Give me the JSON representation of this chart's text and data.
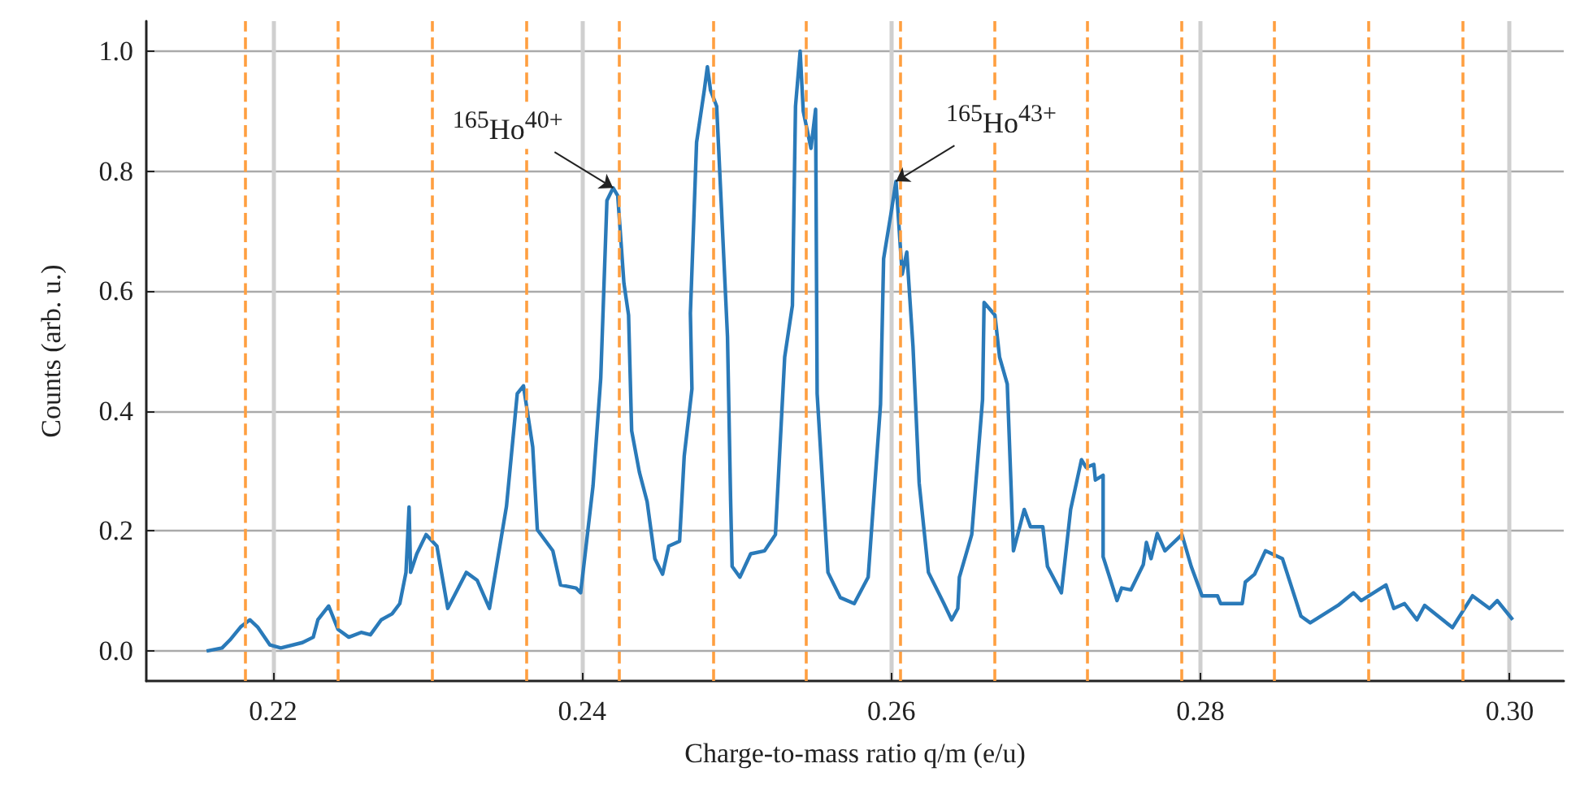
{
  "chart_data": {
    "type": "line",
    "xlabel": "Charge-to-mass ratio q/m (e/u)",
    "ylabel": "Counts (arb. u.)",
    "xlim": [
      0.2118,
      0.3035
    ],
    "ylim": [
      -0.05,
      1.05
    ],
    "xticks": [
      0.22,
      0.24,
      0.26,
      0.28,
      {
        "value": 0.3,
        "label": "0.30"
      }
    ],
    "yticks": [
      {
        "value": 0,
        "label": "0.0"
      },
      {
        "value": 0.2,
        "label": "0.2"
      },
      {
        "value": 0.4,
        "label": "0.4"
      },
      {
        "value": 0.6,
        "label": "0.6"
      },
      {
        "value": 0.8,
        "label": "0.8"
      },
      {
        "value": 1,
        "label": "1.0"
      }
    ],
    "grid": true,
    "marker": "none",
    "line_style": "solid",
    "series": [
      {
        "color": "#2a7ab9",
        "x": [
          0.2157,
          0.2167,
          0.2172,
          0.2179,
          0.2185,
          0.219,
          0.2198,
          0.2205,
          0.2219,
          0.2226,
          0.2229,
          0.2236,
          0.2242,
          0.2249,
          0.2257,
          0.2263,
          0.227,
          0.2277,
          0.2282,
          0.2286,
          0.2288,
          0.2289,
          0.2293,
          0.2299,
          0.2306,
          0.2313,
          0.2325,
          0.2332,
          0.234,
          0.2351,
          0.2358,
          0.2362,
          0.2368,
          0.2371,
          0.2381,
          0.2386,
          0.2396,
          0.2399,
          0.2407,
          0.2412,
          0.2416,
          0.242,
          0.2423,
          0.2427,
          0.243,
          0.2432,
          0.2437,
          0.2442,
          0.2447,
          0.2452,
          0.2456,
          0.2463,
          0.2466,
          0.2471,
          0.247,
          0.2474,
          0.2479,
          0.2481,
          0.2483,
          0.2487,
          0.2494,
          0.2496,
          0.2497,
          0.2502,
          0.2509,
          0.2518,
          0.2525,
          0.2531,
          0.2536,
          0.2538,
          0.2541,
          0.2543,
          0.2548,
          0.2551,
          0.2552,
          0.2559,
          0.2567,
          0.2576,
          0.2585,
          0.2593,
          0.2595,
          0.26,
          0.2603,
          0.2607,
          0.261,
          0.2614,
          0.2618,
          0.2624,
          0.2634,
          0.2639,
          0.2643,
          0.2644,
          0.2652,
          0.2659,
          0.266,
          0.2667,
          0.267,
          0.2675,
          0.2679,
          0.2686,
          0.269,
          0.2698,
          0.2701,
          0.271,
          0.2716,
          0.2723,
          0.2726,
          0.2731,
          0.2732,
          0.2737,
          0.2737,
          0.2746,
          0.2749,
          0.2755,
          0.2763,
          0.2765,
          0.2768,
          0.2772,
          0.2777,
          0.2788,
          0.2794,
          0.2801,
          0.2811,
          0.2813,
          0.2827,
          0.2829,
          0.2835,
          0.2842,
          0.2853,
          0.2865,
          0.2871,
          0.2889,
          0.2899,
          0.2904,
          0.292,
          0.2925,
          0.2932,
          0.294,
          0.2945,
          0.2963,
          0.2976,
          0.2987,
          0.2992,
          0.3002
        ],
        "values": [
          0,
          0.005,
          0.018,
          0.04,
          0.052,
          0.04,
          0.01,
          0.005,
          0.014,
          0.023,
          0.052,
          0.075,
          0.036,
          0.023,
          0.031,
          0.027,
          0.052,
          0.062,
          0.079,
          0.131,
          0.24,
          0.131,
          0.162,
          0.194,
          0.175,
          0.071,
          0.131,
          0.118,
          0.071,
          0.241,
          0.429,
          0.442,
          0.34,
          0.202,
          0.167,
          0.11,
          0.105,
          0.097,
          0.275,
          0.455,
          0.751,
          0.772,
          0.759,
          0.613,
          0.56,
          0.367,
          0.298,
          0.249,
          0.154,
          0.128,
          0.175,
          0.183,
          0.325,
          0.437,
          0.563,
          0.848,
          0.935,
          0.974,
          0.935,
          0.908,
          0.524,
          0.254,
          0.141,
          0.123,
          0.162,
          0.167,
          0.194,
          0.49,
          0.576,
          0.908,
          1.0,
          0.9,
          0.838,
          0.903,
          0.429,
          0.131,
          0.089,
          0.079,
          0.123,
          0.411,
          0.654,
          0.733,
          0.783,
          0.628,
          0.665,
          0.508,
          0.28,
          0.131,
          0.079,
          0.052,
          0.071,
          0.123,
          0.194,
          0.419,
          0.581,
          0.56,
          0.49,
          0.445,
          0.167,
          0.236,
          0.207,
          0.207,
          0.141,
          0.097,
          0.236,
          0.319,
          0.306,
          0.311,
          0.285,
          0.293,
          0.157,
          0.084,
          0.105,
          0.102,
          0.144,
          0.181,
          0.154,
          0.196,
          0.167,
          0.194,
          0.141,
          0.092,
          0.092,
          0.079,
          0.079,
          0.115,
          0.128,
          0.167,
          0.154,
          0.058,
          0.047,
          0.076,
          0.097,
          0.084,
          0.11,
          0.071,
          0.079,
          0.052,
          0.076,
          0.039,
          0.092,
          0.071,
          0.084,
          0.052
        ]
      }
    ],
    "ref_lines": [
      {
        "axis": "x",
        "value": 0.2182,
        "color": "#ff9f40",
        "line_style": "dashed"
      },
      {
        "axis": "x",
        "value": 0.2242,
        "color": "#ff9f40",
        "line_style": "dashed"
      },
      {
        "axis": "x",
        "value": 0.2303,
        "color": "#ff9f40",
        "line_style": "dashed"
      },
      {
        "axis": "x",
        "value": 0.2364,
        "color": "#ff9f40",
        "line_style": "dashed"
      },
      {
        "axis": "x",
        "value": 0.2424,
        "color": "#ff9f40",
        "line_style": "dashed"
      },
      {
        "axis": "x",
        "value": 0.2485,
        "color": "#ff9f40",
        "line_style": "dashed"
      },
      {
        "axis": "x",
        "value": 0.2545,
        "color": "#ff9f40",
        "line_style": "dashed"
      },
      {
        "axis": "x",
        "value": 0.2606,
        "color": "#ff9f40",
        "line_style": "dashed"
      },
      {
        "axis": "x",
        "value": 0.2667,
        "color": "#ff9f40",
        "line_style": "dashed"
      },
      {
        "axis": "x",
        "value": 0.2727,
        "color": "#ff9f40",
        "line_style": "dashed"
      },
      {
        "axis": "x",
        "value": 0.2788,
        "color": "#ff9f40",
        "line_style": "dashed"
      },
      {
        "axis": "x",
        "value": 0.2848,
        "color": "#ff9f40",
        "line_style": "dashed"
      },
      {
        "axis": "x",
        "value": 0.2909,
        "color": "#ff9f40",
        "line_style": "dashed"
      },
      {
        "axis": "x",
        "value": 0.297,
        "color": "#ff9f40",
        "line_style": "dashed"
      }
    ],
    "annotations": [
      {
        "text": "$^{165}$Ho$^{40+}$",
        "x": 0.242,
        "y": 0.772
      },
      {
        "text": "$^{165}$Ho$^{43+}$",
        "x": 0.2603,
        "y": 0.783
      }
    ]
  }
}
